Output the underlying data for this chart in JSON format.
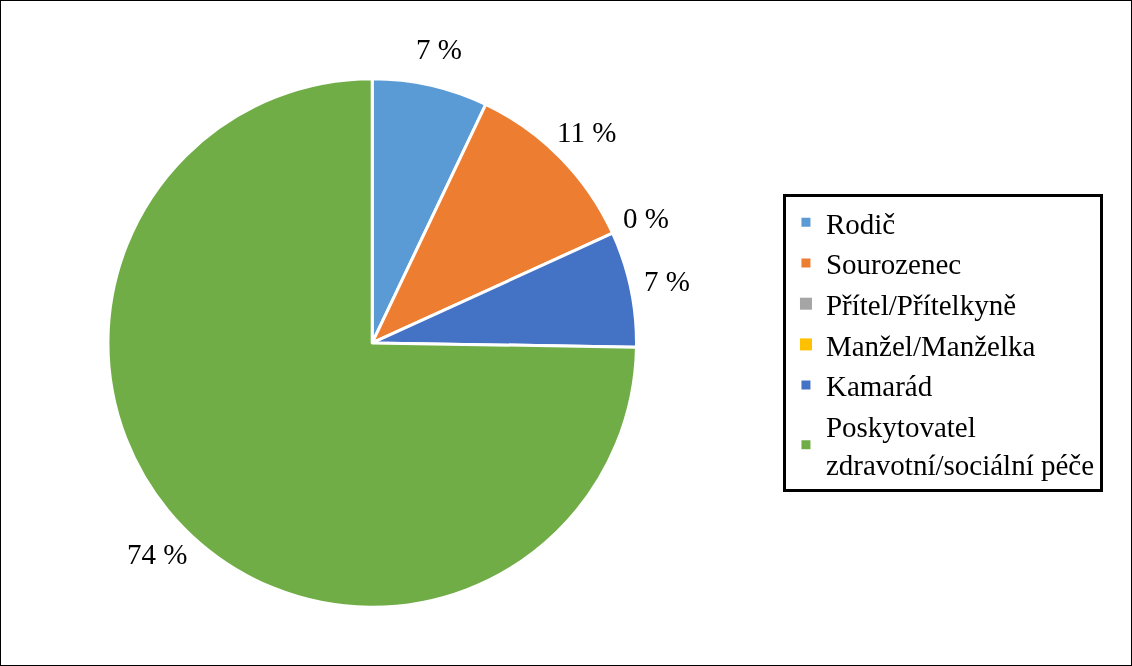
{
  "chart_data": {
    "type": "pie",
    "categories": [
      "Rodič",
      "Sourozenec",
      "Přítel/Přítelkyně",
      "Manžel/Manželka",
      "Kamarád",
      "Poskytovatel zdravotní/sociální péče"
    ],
    "values": [
      7,
      11,
      0,
      0,
      7,
      74
    ],
    "colors": [
      "#5b9bd5",
      "#ed7d31",
      "#a5a5a5",
      "#ffc000",
      "#4472c4",
      "#70ad47"
    ],
    "value_labels": [
      "7 %",
      "11 %",
      "0 %",
      null,
      "7 %",
      "74 %"
    ],
    "legend": "right"
  }
}
